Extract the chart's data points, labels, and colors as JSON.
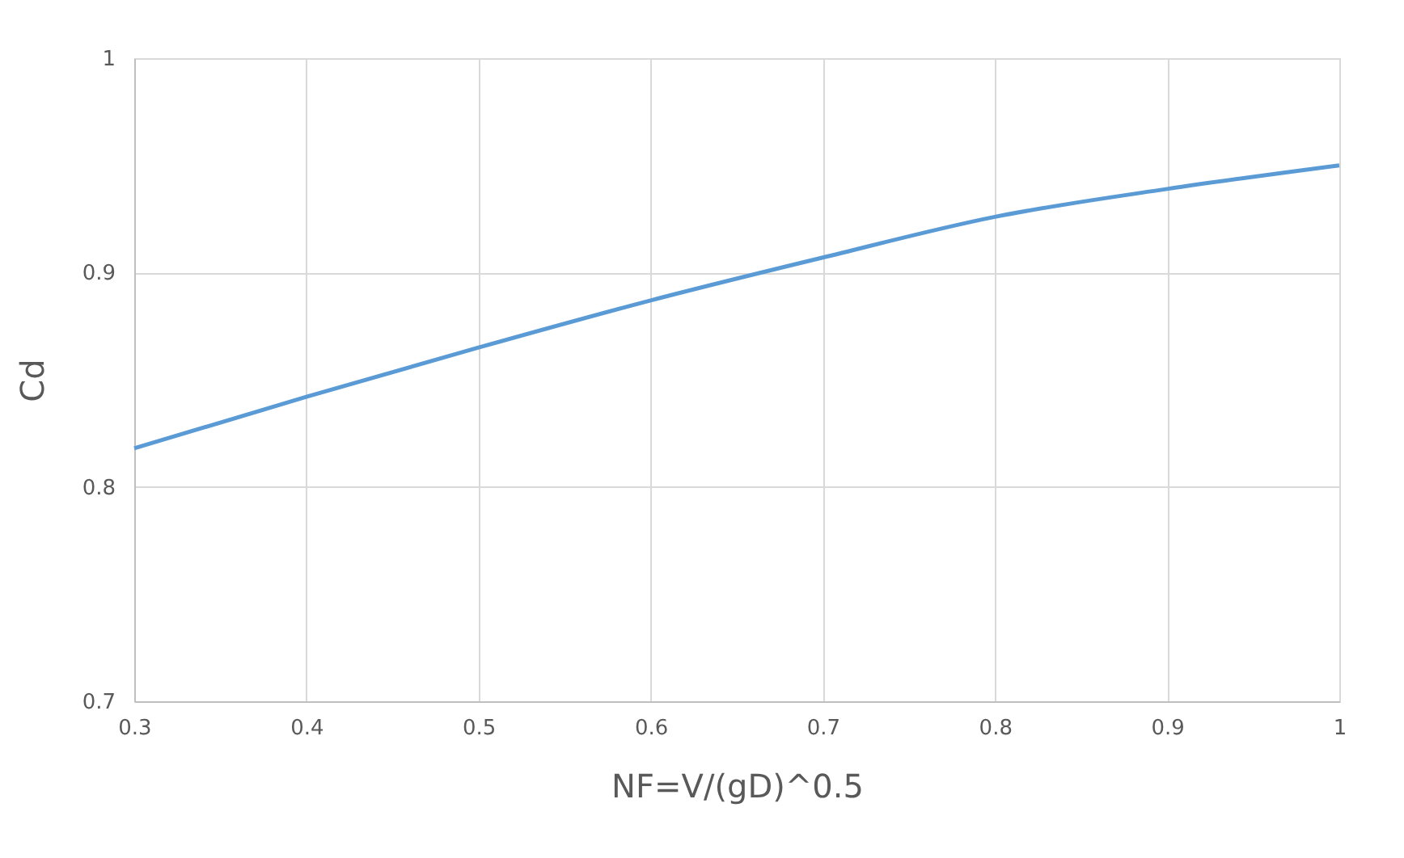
{
  "chart_data": {
    "type": "line",
    "xlabel": "NF=V/(gD)^0.5",
    "ylabel": "Cd",
    "x": [
      0.3,
      0.4,
      0.5,
      0.6,
      0.7,
      0.8,
      0.9,
      1.0
    ],
    "series": [
      {
        "color": "#5b9bd5",
        "values": [
          0.818,
          0.842,
          0.865,
          0.887,
          0.907,
          0.926,
          0.939,
          0.95
        ]
      }
    ],
    "xlim": [
      0.3,
      1
    ],
    "xticks": [
      0.3,
      0.4,
      0.5,
      0.6,
      0.7,
      0.8,
      0.9,
      1
    ],
    "ylim": [
      0.7,
      1
    ],
    "yticks": [
      0.7,
      0.8,
      0.9,
      1
    ],
    "grid": true,
    "marker": "none",
    "line_style": "solid"
  }
}
